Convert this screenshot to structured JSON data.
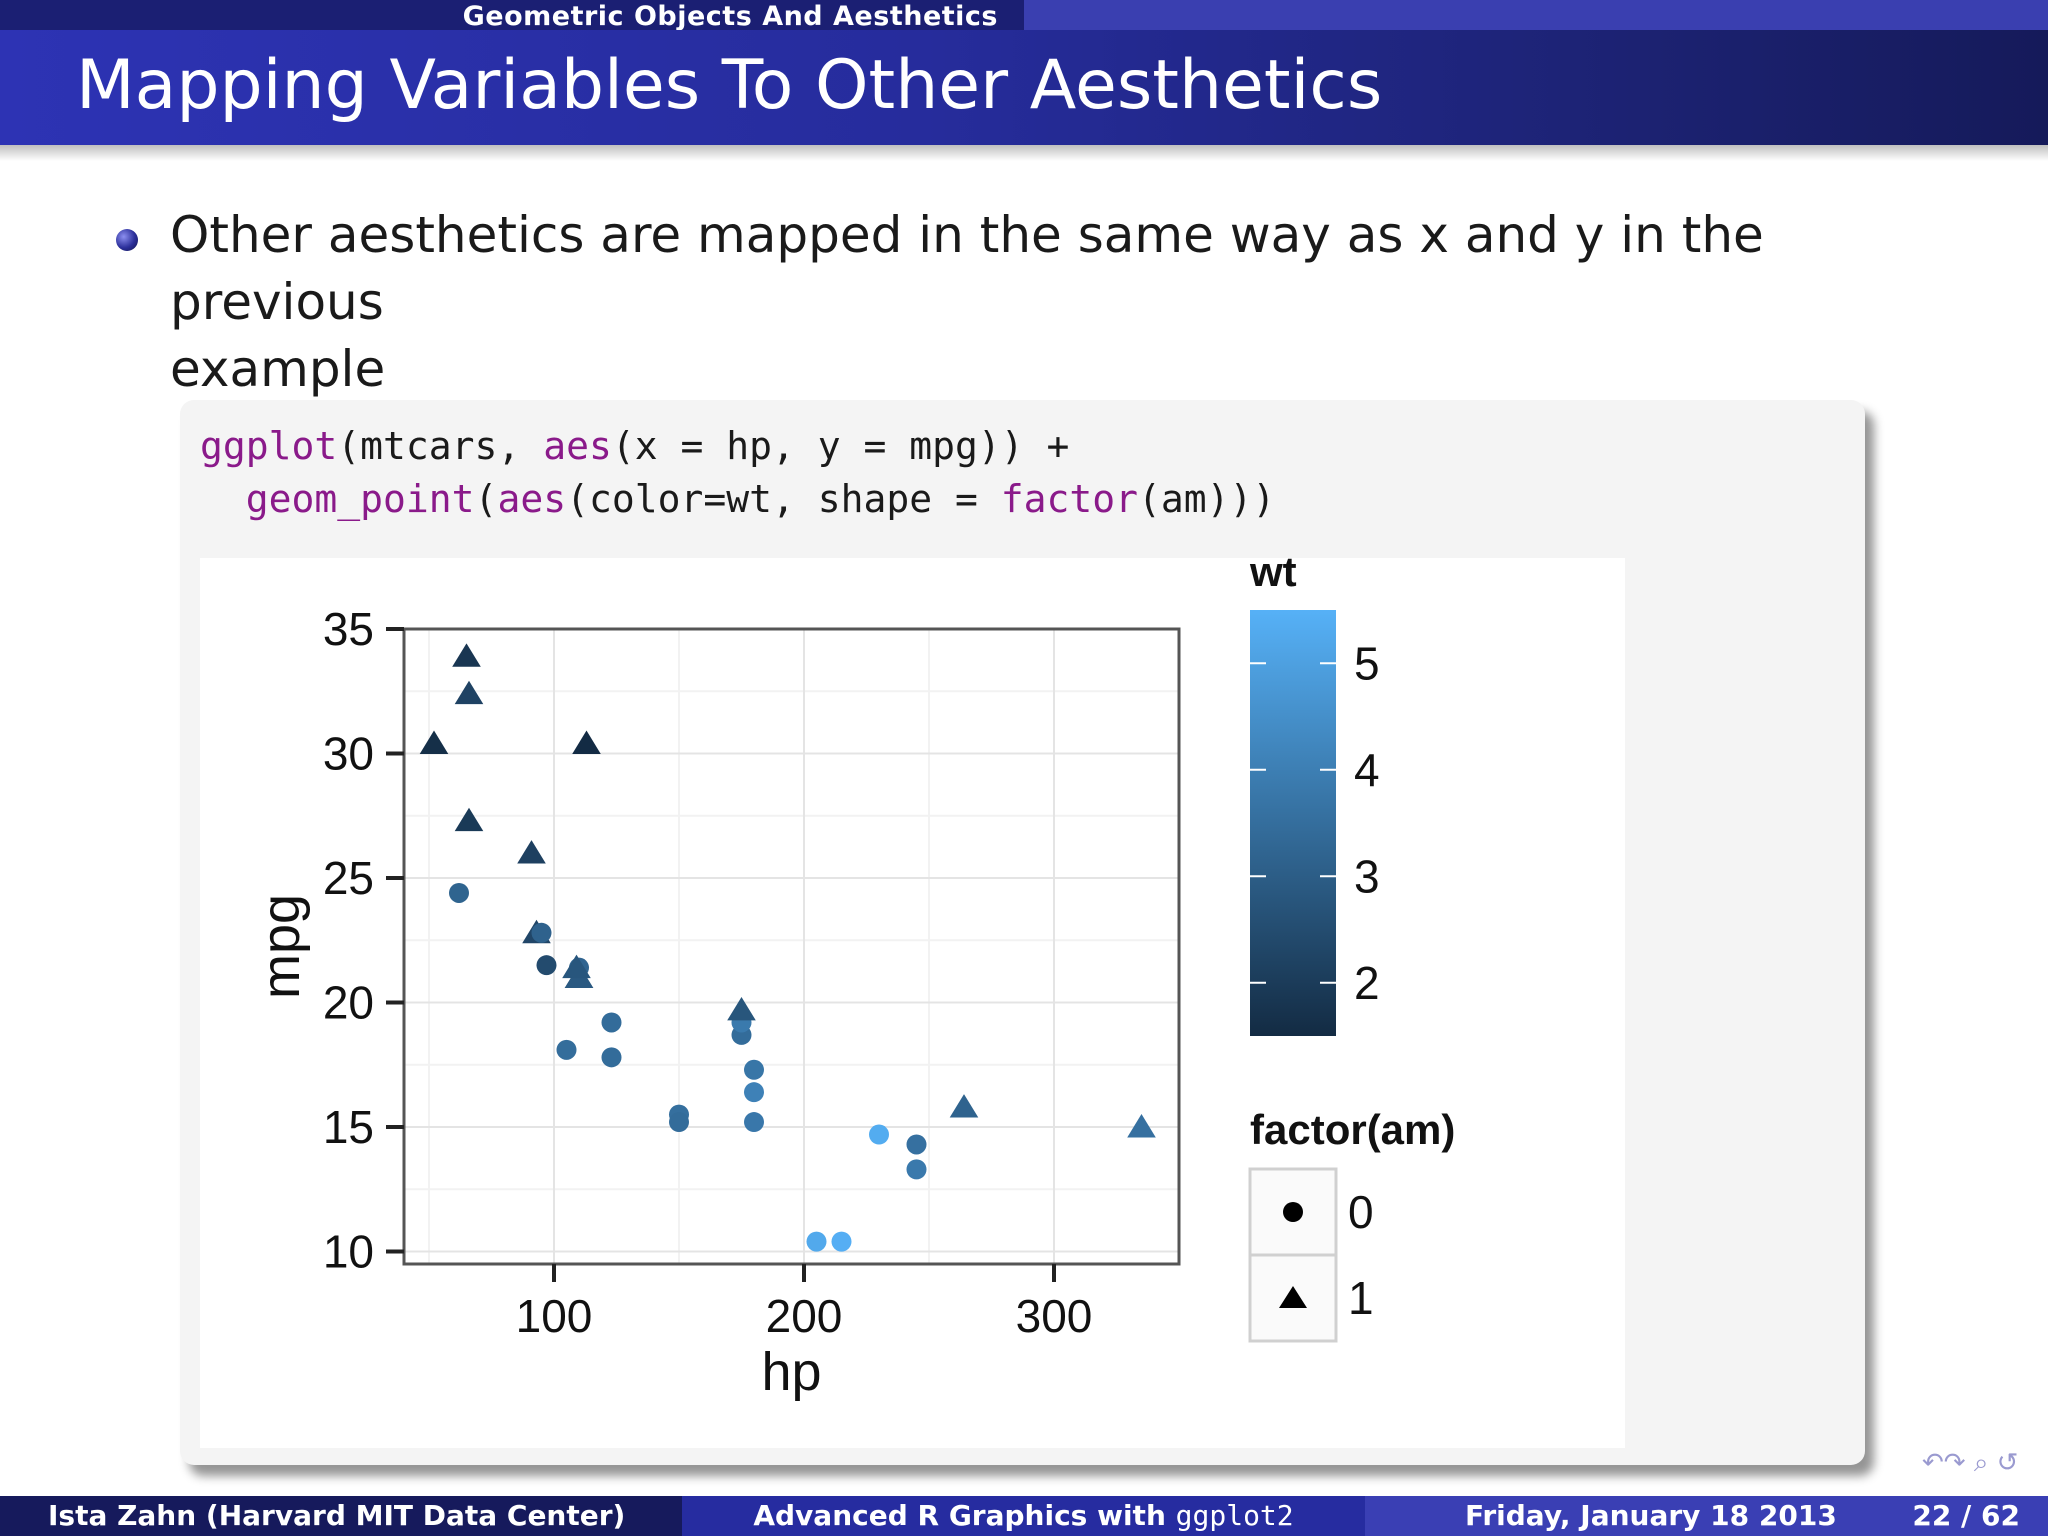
{
  "header": {
    "section": "Geometric Objects And Aesthetics",
    "title": "Mapping Variables To Other Aesthetics"
  },
  "bullet": {
    "line1": "Other aesthetics are mapped in the same way as x and y in the previous",
    "line2": "example"
  },
  "code": {
    "line1": [
      {
        "t": "ggplot",
        "kw": true
      },
      {
        "t": "(mtcars, ",
        "kw": false
      },
      {
        "t": "aes",
        "kw": true
      },
      {
        "t": "(x = hp, y = mpg)) +",
        "kw": false
      }
    ],
    "line2": [
      {
        "t": "  ",
        "kw": false
      },
      {
        "t": "geom_point",
        "kw": true
      },
      {
        "t": "(",
        "kw": false
      },
      {
        "t": "aes",
        "kw": true
      },
      {
        "t": "(color=wt, shape = ",
        "kw": false
      },
      {
        "t": "factor",
        "kw": true
      },
      {
        "t": "(am)))",
        "kw": false
      }
    ]
  },
  "colors": {
    "low": "#132b43",
    "high": "#56b1f7",
    "grid": "#e4e4e4",
    "axis": "#555555"
  },
  "chart_data": {
    "type": "scatter",
    "xlabel": "hp",
    "ylabel": "mpg",
    "xlim": [
      40,
      350
    ],
    "ylim": [
      9.5,
      35
    ],
    "xticks": [
      100,
      200,
      300
    ],
    "yticks": [
      10,
      15,
      20,
      25,
      30,
      35
    ],
    "color_legend": {
      "title": "wt",
      "ticks": [
        2,
        3,
        4,
        5
      ],
      "range": [
        1.5,
        5.5
      ]
    },
    "shape_legend": {
      "title": "factor(am)",
      "entries": [
        {
          "label": "0",
          "shape": "circle"
        },
        {
          "label": "1",
          "shape": "triangle"
        }
      ]
    },
    "points": [
      {
        "hp": 110,
        "mpg": 21.0,
        "wt": 2.62,
        "am": 1
      },
      {
        "hp": 110,
        "mpg": 21.0,
        "wt": 2.875,
        "am": 1
      },
      {
        "hp": 93,
        "mpg": 22.8,
        "wt": 2.32,
        "am": 1
      },
      {
        "hp": 110,
        "mpg": 21.4,
        "wt": 3.215,
        "am": 0
      },
      {
        "hp": 175,
        "mpg": 18.7,
        "wt": 3.44,
        "am": 0
      },
      {
        "hp": 105,
        "mpg": 18.1,
        "wt": 3.46,
        "am": 0
      },
      {
        "hp": 245,
        "mpg": 14.3,
        "wt": 3.57,
        "am": 0
      },
      {
        "hp": 62,
        "mpg": 24.4,
        "wt": 3.19,
        "am": 0
      },
      {
        "hp": 95,
        "mpg": 22.8,
        "wt": 3.15,
        "am": 0
      },
      {
        "hp": 123,
        "mpg": 19.2,
        "wt": 3.44,
        "am": 0
      },
      {
        "hp": 123,
        "mpg": 17.8,
        "wt": 3.44,
        "am": 0
      },
      {
        "hp": 180,
        "mpg": 16.4,
        "wt": 4.07,
        "am": 0
      },
      {
        "hp": 180,
        "mpg": 17.3,
        "wt": 3.73,
        "am": 0
      },
      {
        "hp": 180,
        "mpg": 15.2,
        "wt": 3.78,
        "am": 0
      },
      {
        "hp": 205,
        "mpg": 10.4,
        "wt": 5.25,
        "am": 0
      },
      {
        "hp": 215,
        "mpg": 10.4,
        "wt": 5.424,
        "am": 0
      },
      {
        "hp": 230,
        "mpg": 14.7,
        "wt": 5.345,
        "am": 0
      },
      {
        "hp": 66,
        "mpg": 32.4,
        "wt": 2.2,
        "am": 1
      },
      {
        "hp": 52,
        "mpg": 30.4,
        "wt": 1.615,
        "am": 1
      },
      {
        "hp": 65,
        "mpg": 33.9,
        "wt": 1.835,
        "am": 1
      },
      {
        "hp": 97,
        "mpg": 21.5,
        "wt": 2.465,
        "am": 0
      },
      {
        "hp": 150,
        "mpg": 15.5,
        "wt": 3.52,
        "am": 0
      },
      {
        "hp": 150,
        "mpg": 15.2,
        "wt": 3.435,
        "am": 0
      },
      {
        "hp": 245,
        "mpg": 13.3,
        "wt": 3.84,
        "am": 0
      },
      {
        "hp": 175,
        "mpg": 19.2,
        "wt": 3.845,
        "am": 0
      },
      {
        "hp": 66,
        "mpg": 27.3,
        "wt": 1.935,
        "am": 1
      },
      {
        "hp": 91,
        "mpg": 26.0,
        "wt": 2.14,
        "am": 1
      },
      {
        "hp": 113,
        "mpg": 30.4,
        "wt": 1.513,
        "am": 1
      },
      {
        "hp": 264,
        "mpg": 15.8,
        "wt": 3.17,
        "am": 1
      },
      {
        "hp": 175,
        "mpg": 19.7,
        "wt": 2.77,
        "am": 1
      },
      {
        "hp": 335,
        "mpg": 15.0,
        "wt": 3.57,
        "am": 1
      },
      {
        "hp": 109,
        "mpg": 21.4,
        "wt": 2.78,
        "am": 1
      }
    ]
  },
  "footer": {
    "author": "Ista Zahn  (Harvard MIT Data Center)",
    "talk_prefix": "Advanced R Graphics with ",
    "talk_mono": "ggplot2",
    "date": "Friday, January 18 2013",
    "page": "22 / 62"
  },
  "nav_icons": "↶↷ ⌕ ↺"
}
